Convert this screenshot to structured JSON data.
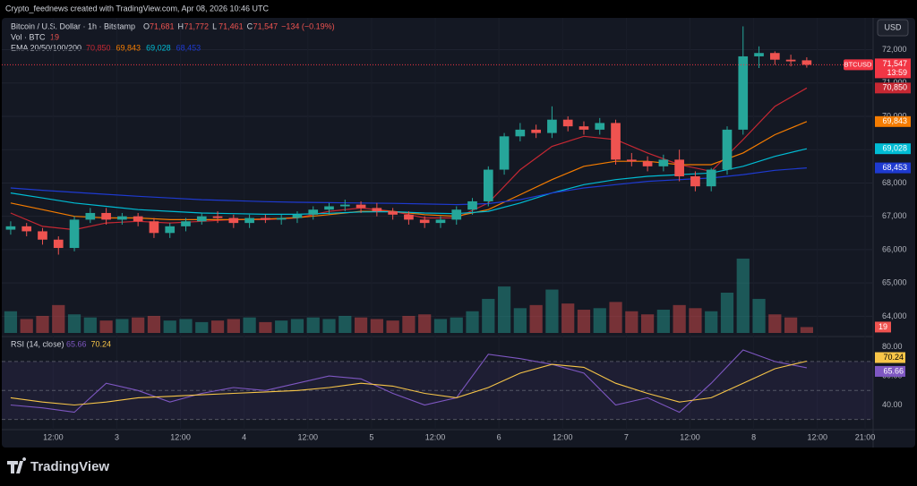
{
  "header": {
    "caption": "Crypto_feednews created with TradingView.com, Apr 08, 2026 10:46 UTC",
    "logo": "TradingView",
    "currency_button": "USD"
  },
  "chart_data": {
    "type": "candlestick",
    "title": "Bitcoin / U.S. Dollar · 1h · Bitstamp",
    "ohlc_legend": [
      {
        "key": "O",
        "value": 71681,
        "label": "71,681"
      },
      {
        "key": "H",
        "value": 71772,
        "label": "71,772"
      },
      {
        "key": "L",
        "value": 71461,
        "label": "71,461"
      },
      {
        "key": "C",
        "value": 71547,
        "label": "71,547"
      }
    ],
    "change": {
      "value": -134,
      "label": "−134 (−0.19%)"
    },
    "up_color": "#26a69a",
    "down_color": "#ef5350",
    "x": [
      4,
      7,
      10,
      13,
      16,
      19,
      22,
      25,
      28,
      31,
      34,
      37,
      40,
      43,
      46,
      49,
      52,
      55,
      58,
      61,
      64,
      67,
      70,
      73,
      76,
      79,
      82,
      85,
      88,
      91,
      94,
      97,
      100,
      103,
      106,
      109,
      112,
      115,
      118,
      121,
      124,
      127,
      130,
      133,
      136,
      139,
      142,
      145,
      148,
      151,
      154
    ],
    "open": [
      66600,
      66700,
      66550,
      66300,
      66050,
      66900,
      67100,
      66900,
      67000,
      66850,
      66500,
      66700,
      66850,
      67000,
      66950,
      66800,
      66950,
      66900,
      66950,
      67050,
      67200,
      67300,
      67350,
      67250,
      67150,
      67050,
      66900,
      66800,
      66900,
      67200,
      67450,
      68400,
      69400,
      69600,
      69500,
      69900,
      69700,
      69600,
      69800,
      68700,
      68650,
      68500,
      68700,
      68200,
      67900,
      68400,
      69600,
      71800,
      71900,
      71700,
      71681
    ],
    "high": [
      66850,
      66800,
      66650,
      66400,
      67000,
      67250,
      67250,
      67100,
      67100,
      66950,
      66800,
      66950,
      67100,
      67150,
      67050,
      67050,
      67050,
      67050,
      67150,
      67300,
      67400,
      67500,
      67450,
      67400,
      67250,
      67150,
      67000,
      67000,
      67300,
      67550,
      68500,
      69500,
      69800,
      69750,
      70300,
      70000,
      69850,
      69950,
      69900,
      68900,
      68800,
      68850,
      69000,
      68350,
      68450,
      69700,
      72700,
      72100,
      71950,
      71850,
      71772
    ],
    "low": [
      66450,
      66400,
      66150,
      65850,
      65950,
      66800,
      66750,
      66750,
      66700,
      66350,
      66350,
      66550,
      66750,
      66800,
      66650,
      66650,
      66800,
      66750,
      66800,
      66900,
      67050,
      67150,
      67100,
      67000,
      66900,
      66750,
      66650,
      66650,
      66750,
      67050,
      67300,
      68250,
      69250,
      69350,
      69350,
      69550,
      69450,
      69450,
      68550,
      68500,
      68350,
      68350,
      68050,
      67750,
      67750,
      68250,
      69450,
      71450,
      71550,
      71500,
      71461
    ],
    "close": [
      66700,
      66550,
      66300,
      66050,
      66900,
      67100,
      66900,
      67000,
      66850,
      66500,
      66700,
      66850,
      67000,
      66950,
      66800,
      66950,
      66900,
      66950,
      67050,
      67200,
      67300,
      67350,
      67250,
      67150,
      67050,
      66900,
      66800,
      66900,
      67200,
      67450,
      68400,
      69400,
      69600,
      69500,
      69900,
      69700,
      69600,
      69800,
      68700,
      68650,
      68500,
      68700,
      68200,
      67900,
      68400,
      69600,
      71800,
      71900,
      71700,
      71650,
      71547
    ],
    "xlim": [
      3,
      166
    ],
    "xticks": [
      {
        "value": 12,
        "label": "12:00"
      },
      {
        "value": 24,
        "label": "3"
      },
      {
        "value": 36,
        "label": "12:00"
      },
      {
        "value": 48,
        "label": "4"
      },
      {
        "value": 60,
        "label": "12:00"
      },
      {
        "value": 72,
        "label": "5"
      },
      {
        "value": 84,
        "label": "12:00"
      },
      {
        "value": 96,
        "label": "6"
      },
      {
        "value": 108,
        "label": "12:00"
      },
      {
        "value": 120,
        "label": "7"
      },
      {
        "value": 132,
        "label": "12:00"
      },
      {
        "value": 144,
        "label": "8"
      },
      {
        "value": 156,
        "label": "12:00"
      },
      {
        "value": 165,
        "label": "21:00"
      }
    ],
    "ylim": [
      63500,
      72900
    ],
    "yticks": [
      {
        "value": 64000,
        "label": "64,000"
      },
      {
        "value": 65000,
        "label": "65,000"
      },
      {
        "value": 66000,
        "label": "66,000"
      },
      {
        "value": 67000,
        "label": "67,000"
      },
      {
        "value": 68000,
        "label": "68,000"
      },
      {
        "value": 69000,
        "label": "69,000"
      },
      {
        "value": 70000,
        "label": "70,000"
      },
      {
        "value": 71000,
        "label": "71,000"
      },
      {
        "value": 72000,
        "label": "72,000"
      }
    ],
    "last_price": {
      "symbol": "BTCUSD",
      "value": 71547,
      "label": "71,547",
      "countdown": "13:59",
      "color": "#f23645"
    },
    "volume": {
      "name": "Vol · BTC",
      "ylim": [
        0,
        260
      ],
      "values": [
        70,
        45,
        55,
        90,
        60,
        50,
        40,
        45,
        50,
        55,
        40,
        45,
        35,
        40,
        45,
        50,
        35,
        40,
        45,
        50,
        45,
        55,
        50,
        45,
        40,
        55,
        60,
        45,
        50,
        70,
        110,
        150,
        80,
        90,
        140,
        95,
        75,
        80,
        100,
        70,
        60,
        75,
        90,
        80,
        70,
        130,
        240,
        110,
        60,
        50,
        19
      ]
    },
    "ema": {
      "name": "EMA 20/50/100/200",
      "x": [
        4,
        10,
        16,
        22,
        28,
        34,
        40,
        46,
        52,
        58,
        64,
        70,
        76,
        82,
        88,
        94,
        100,
        106,
        112,
        118,
        124,
        130,
        136,
        142,
        148,
        154
      ],
      "series": [
        {
          "color": "#c62833",
          "last_label": "70,850",
          "values": [
            67100,
            66700,
            66600,
            66800,
            66850,
            66800,
            66850,
            66900,
            66900,
            66950,
            67150,
            67250,
            67150,
            66950,
            66950,
            67400,
            68400,
            69100,
            69400,
            69300,
            68900,
            68550,
            68350,
            69300,
            70300,
            70850
          ]
        },
        {
          "color": "#f57c00",
          "last_label": "69,843",
          "values": [
            67400,
            67200,
            67000,
            66950,
            66950,
            66900,
            66900,
            66900,
            66920,
            66960,
            67050,
            67150,
            67150,
            67050,
            67000,
            67200,
            67650,
            68100,
            68500,
            68650,
            68650,
            68550,
            68550,
            68900,
            69450,
            69843
          ]
        },
        {
          "color": "#00bcd4",
          "last_label": "69,028",
          "values": [
            67700,
            67550,
            67400,
            67300,
            67200,
            67150,
            67100,
            67080,
            67060,
            67060,
            67090,
            67130,
            67140,
            67100,
            67080,
            67150,
            67400,
            67700,
            67950,
            68100,
            68200,
            68250,
            68300,
            68500,
            68800,
            69028
          ]
        },
        {
          "color": "#1e3ad0",
          "last_label": "68,453",
          "values": [
            67850,
            67780,
            67720,
            67660,
            67600,
            67550,
            67500,
            67470,
            67440,
            67420,
            67410,
            67400,
            67390,
            67370,
            67350,
            67380,
            67500,
            67700,
            67850,
            67950,
            68050,
            68100,
            68150,
            68250,
            68380,
            68453
          ]
        }
      ]
    },
    "rsi": {
      "name": "RSI (14, close)",
      "ylim": [
        23,
        86
      ],
      "bands": [
        70,
        50,
        30
      ],
      "yticks": [
        {
          "value": 80,
          "label": "80.00"
        },
        {
          "value": 60,
          "label": "60.00"
        },
        {
          "value": 40,
          "label": "40.00"
        }
      ],
      "x": [
        4,
        10,
        16,
        22,
        28,
        34,
        40,
        46,
        52,
        58,
        64,
        70,
        76,
        82,
        88,
        94,
        100,
        106,
        112,
        118,
        124,
        130,
        136,
        142,
        148,
        154
      ],
      "series": [
        {
          "color": "#7e57c2",
          "values": [
            40,
            38,
            35,
            55,
            50,
            42,
            48,
            52,
            50,
            55,
            60,
            58,
            48,
            40,
            45,
            75,
            72,
            68,
            62,
            40,
            45,
            35,
            55,
            78,
            70,
            65.66
          ]
        },
        {
          "color": "#f7c548",
          "values": [
            45,
            42,
            40,
            42,
            45,
            46,
            47,
            48,
            49,
            50,
            52,
            55,
            53,
            48,
            45,
            52,
            62,
            68,
            66,
            55,
            48,
            42,
            45,
            55,
            65,
            70.24
          ]
        }
      ]
    }
  }
}
